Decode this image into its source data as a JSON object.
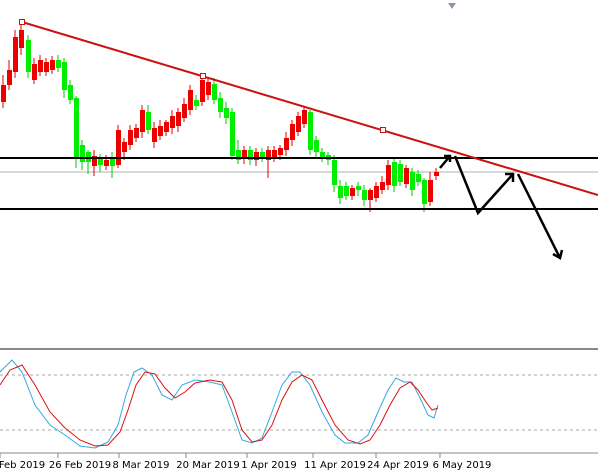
{
  "x_axis_labels": [
    "Feb 2019",
    "26 Feb 2019",
    "8 Mar 2019",
    "20 Mar 2019",
    "1 Apr 2019",
    "11 Apr 2019",
    "24 Apr 2019",
    "6 May 2019"
  ]
}
